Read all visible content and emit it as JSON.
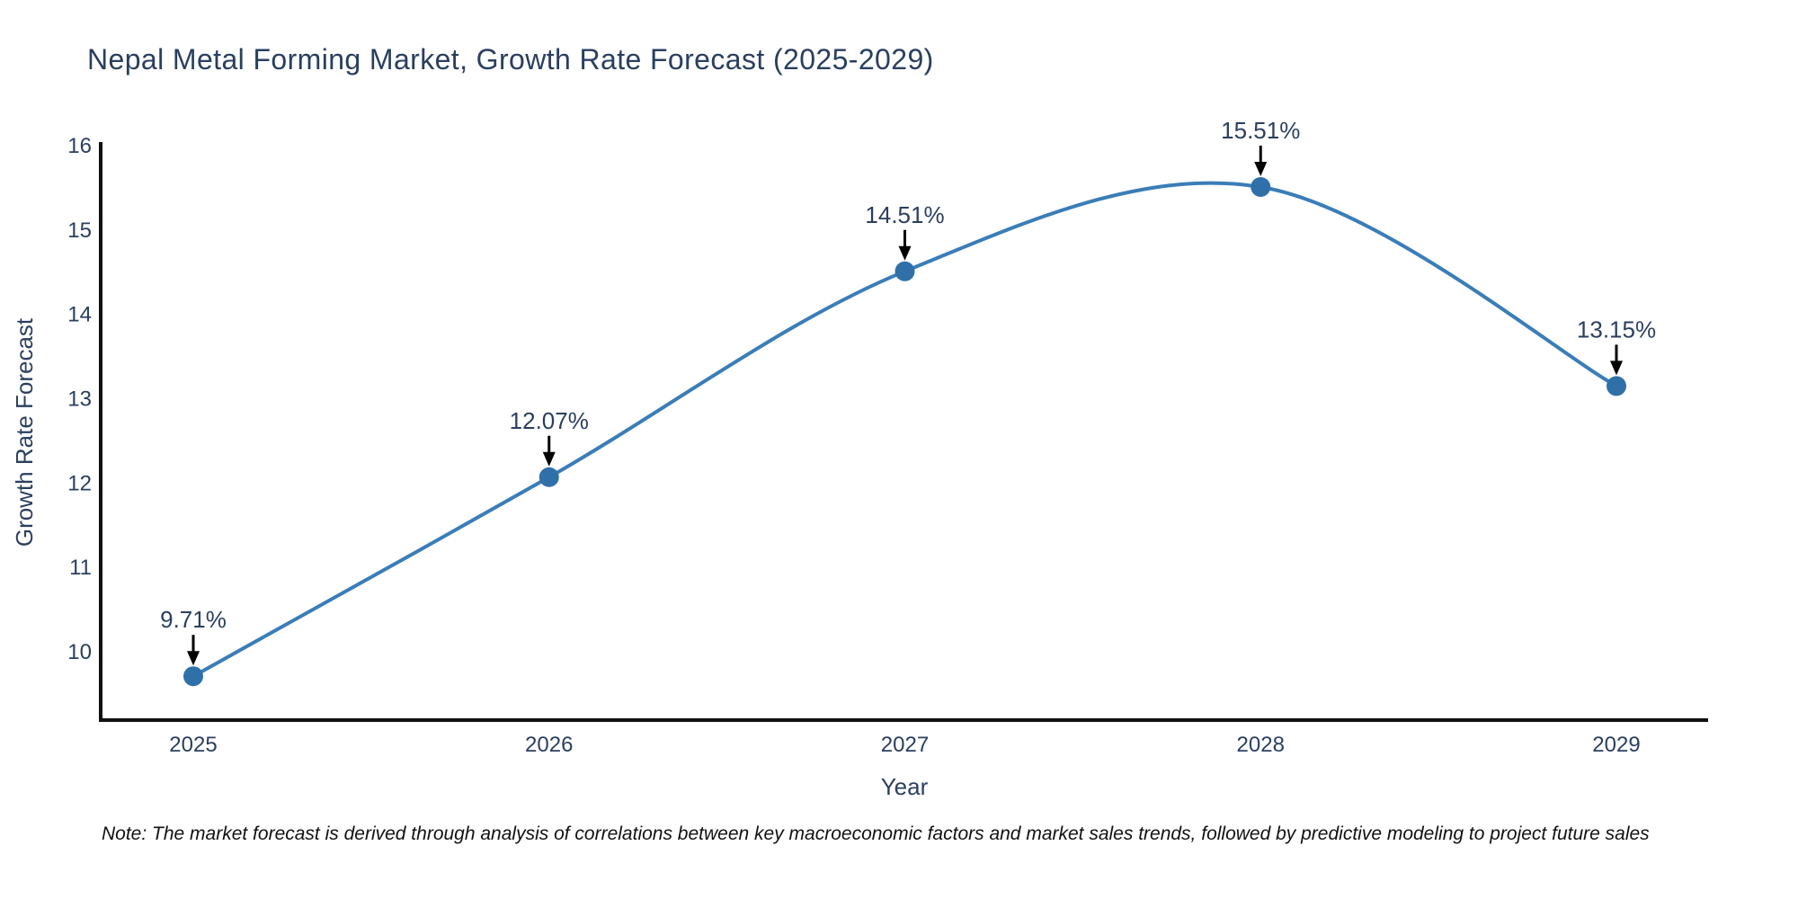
{
  "title": "Nepal Metal Forming Market, Growth Rate Forecast (2025-2029)",
  "note": "Note: The market forecast is derived through analysis of correlations between key macroeconomic factors and market sales trends, followed by predictive modeling to project future sales",
  "chart_data": {
    "type": "line",
    "line_shape": "spline",
    "title": "Nepal Metal Forming Market, Growth Rate Forecast (2025-2029)",
    "xlabel": "Year",
    "ylabel": "Growth Rate Forecast",
    "x": [
      2025,
      2026,
      2027,
      2028,
      2029
    ],
    "values": [
      9.71,
      12.07,
      14.51,
      15.51,
      13.15
    ],
    "point_labels": [
      "9.71%",
      "12.07%",
      "14.51%",
      "15.51%",
      "13.15%"
    ],
    "xticks": [
      "2025",
      "2026",
      "2027",
      "2028",
      "2029"
    ],
    "yticks": [
      10,
      11,
      12,
      13,
      14,
      15,
      16
    ],
    "ylim": [
      9.2,
      16.0
    ],
    "grid": false,
    "legend": "none",
    "annotations_style": "label-above-with-down-arrow",
    "colors": {
      "line": "#3a7db8",
      "marker": "#3070a8",
      "arrow": "#000000",
      "text": "#2a3f5f",
      "axis": "#111111",
      "note_text": "#111111",
      "background": "#ffffff"
    }
  }
}
